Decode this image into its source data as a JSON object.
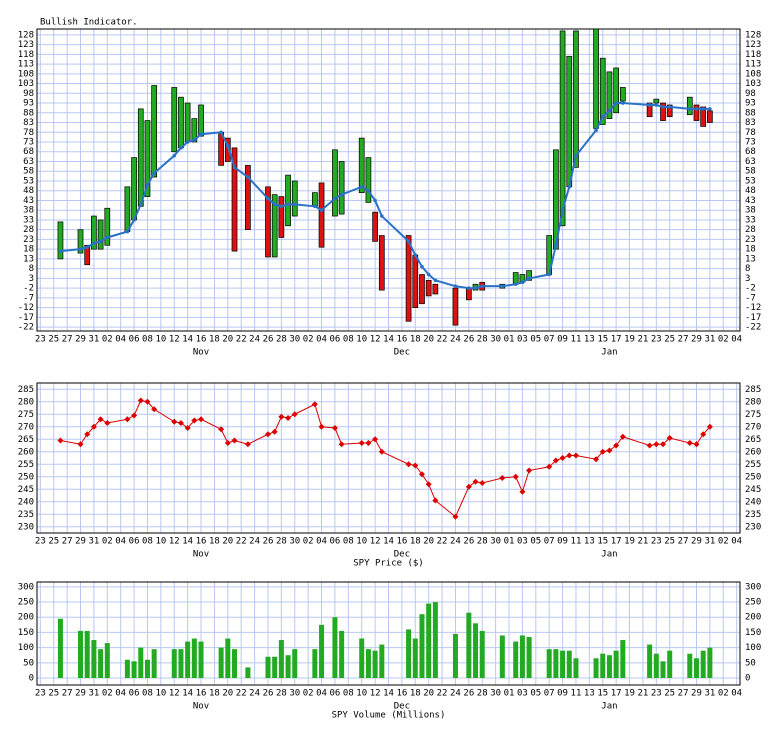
{
  "chart_data": [
    {
      "type": "range_bar",
      "title": "Bullish Indicator.",
      "x": [
        3,
        6,
        7,
        8,
        9,
        10,
        13,
        14,
        15,
        16,
        17,
        20,
        21,
        22,
        23,
        24,
        27,
        28,
        29,
        31,
        34,
        35,
        36,
        37,
        38,
        41,
        42,
        44,
        45,
        48,
        49,
        50,
        51,
        55,
        56,
        57,
        58,
        59,
        62,
        64,
        65,
        66,
        69,
        71,
        72,
        73,
        76,
        77,
        78,
        79,
        80,
        83,
        84,
        85,
        86,
        87,
        91,
        92,
        93,
        94,
        97,
        98,
        99,
        100
      ],
      "open": [
        13,
        16,
        20,
        18,
        18,
        20,
        27,
        33,
        40,
        45,
        55,
        68,
        70,
        73,
        73,
        76,
        78,
        75,
        70,
        61,
        50,
        14,
        45,
        30,
        35,
        40,
        52,
        35,
        36,
        47,
        42,
        37,
        25,
        25,
        15,
        5,
        2,
        0,
        -2,
        -2,
        -3,
        1,
        -2,
        0,
        1,
        2,
        5,
        18,
        30,
        50,
        60,
        80,
        82,
        85,
        88,
        94,
        93,
        93,
        93,
        92,
        87,
        92,
        91,
        89
      ],
      "close": [
        32,
        28,
        10,
        35,
        33,
        39,
        50,
        65,
        90,
        84,
        102,
        101,
        96,
        93,
        85,
        92,
        61,
        63,
        17,
        28,
        14,
        46,
        24,
        56,
        53,
        47,
        19,
        69,
        63,
        75,
        65,
        22,
        -3,
        -19,
        -12,
        -10,
        -6,
        -5,
        -21,
        -8,
        0,
        -3,
        0,
        6,
        5,
        7,
        25,
        69,
        130,
        117,
        130,
        131,
        116,
        109,
        111,
        101,
        86,
        95,
        84,
        86,
        96,
        84,
        81,
        83
      ],
      "up_color": "#22aa22",
      "down_color": "#dd1111",
      "line": {
        "color": "#2a72c8",
        "values": [
          17,
          18,
          19,
          21,
          22,
          24,
          27,
          33,
          41,
          51,
          57,
          66,
          70,
          73,
          74,
          77,
          78,
          71,
          60,
          55,
          44,
          41,
          40,
          41,
          41,
          40,
          38,
          44,
          46,
          50,
          48,
          43,
          35,
          22,
          15,
          9,
          5,
          2,
          -1,
          -2,
          -2,
          -1,
          -1,
          0,
          1,
          3,
          5,
          20,
          38,
          50,
          66,
          79,
          86,
          89,
          93,
          93,
          92,
          92,
          91,
          91,
          90,
          90,
          90,
          90
        ]
      },
      "xlim": [
        -0.5,
        104.5
      ],
      "xticks": [
        {
          "value": 0,
          "label": "23"
        },
        {
          "value": 2,
          "label": "25"
        },
        {
          "value": 4,
          "label": "27"
        },
        {
          "value": 6,
          "label": "29"
        },
        {
          "value": 8,
          "label": "31"
        },
        {
          "value": 10,
          "label": "02"
        },
        {
          "value": 12,
          "label": "04"
        },
        {
          "value": 14,
          "label": "06"
        },
        {
          "value": 16,
          "label": "08"
        },
        {
          "value": 18,
          "label": "10"
        },
        {
          "value": 20,
          "label": "12"
        },
        {
          "value": 22,
          "label": "14"
        },
        {
          "value": 24,
          "label": "16"
        },
        {
          "value": 26,
          "label": "18"
        },
        {
          "value": 28,
          "label": "20"
        },
        {
          "value": 30,
          "label": "22"
        },
        {
          "value": 32,
          "label": "24"
        },
        {
          "value": 34,
          "label": "26"
        },
        {
          "value": 36,
          "label": "28"
        },
        {
          "value": 38,
          "label": "30"
        },
        {
          "value": 40,
          "label": "02"
        },
        {
          "value": 42,
          "label": "04"
        },
        {
          "value": 44,
          "label": "06"
        },
        {
          "value": 46,
          "label": "08"
        },
        {
          "value": 48,
          "label": "10"
        },
        {
          "value": 50,
          "label": "12"
        },
        {
          "value": 52,
          "label": "14"
        },
        {
          "value": 54,
          "label": "16"
        },
        {
          "value": 56,
          "label": "18"
        },
        {
          "value": 58,
          "label": "20"
        },
        {
          "value": 60,
          "label": "22"
        },
        {
          "value": 62,
          "label": "24"
        },
        {
          "value": 64,
          "label": "26"
        },
        {
          "value": 66,
          "label": "28"
        },
        {
          "value": 68,
          "label": "30"
        },
        {
          "value": 70,
          "label": "01"
        },
        {
          "value": 72,
          "label": "03"
        },
        {
          "value": 74,
          "label": "05"
        },
        {
          "value": 76,
          "label": "07"
        },
        {
          "value": 78,
          "label": "09"
        },
        {
          "value": 80,
          "label": "11"
        },
        {
          "value": 82,
          "label": "13"
        },
        {
          "value": 84,
          "label": "15"
        },
        {
          "value": 86,
          "label": "17"
        },
        {
          "value": 88,
          "label": "19"
        },
        {
          "value": 90,
          "label": "21"
        },
        {
          "value": 92,
          "label": "23"
        },
        {
          "value": 94,
          "label": "25"
        },
        {
          "value": 96,
          "label": "27"
        },
        {
          "value": 98,
          "label": "29"
        },
        {
          "value": 100,
          "label": "31"
        },
        {
          "value": 102,
          "label": "02"
        },
        {
          "value": 104,
          "label": "04"
        }
      ],
      "months": [
        {
          "value": 24,
          "label": "Nov"
        },
        {
          "value": 54,
          "label": "Dec"
        },
        {
          "value": 85,
          "label": "Jan"
        }
      ],
      "ylim": [
        -24,
        131
      ],
      "yticks": [
        -22,
        -17,
        -12,
        -7,
        -2,
        3,
        8,
        13,
        18,
        23,
        28,
        33,
        38,
        43,
        48,
        53,
        58,
        63,
        68,
        73,
        78,
        83,
        88,
        93,
        98,
        103,
        108,
        113,
        118,
        123,
        128
      ],
      "grid": true
    },
    {
      "type": "line",
      "x_label": "SPY Price ($)",
      "color": "#dd0000",
      "x": [
        3,
        6,
        7,
        8,
        9,
        10,
        13,
        14,
        15,
        16,
        17,
        20,
        21,
        22,
        23,
        24,
        27,
        28,
        29,
        31,
        34,
        35,
        36,
        37,
        38,
        41,
        42,
        44,
        45,
        48,
        49,
        50,
        51,
        55,
        56,
        57,
        58,
        59,
        62,
        64,
        65,
        66,
        69,
        71,
        72,
        73,
        76,
        77,
        78,
        79,
        80,
        83,
        84,
        85,
        86,
        87,
        91,
        92,
        93,
        94,
        97,
        98,
        99,
        100
      ],
      "values": [
        264.5,
        263,
        267,
        270,
        273,
        271.5,
        273,
        274.5,
        280.5,
        280,
        277,
        272,
        271.5,
        269.5,
        272.5,
        273,
        269,
        263.5,
        264.5,
        263,
        267,
        268,
        274,
        273.5,
        275,
        279,
        270,
        269.5,
        263,
        263.5,
        263.5,
        265,
        260,
        255,
        254.5,
        251,
        247,
        240.5,
        234,
        246,
        248,
        247.5,
        249.5,
        250,
        244,
        252.5,
        254,
        256.5,
        257.5,
        258.5,
        258.5,
        257,
        260,
        260.5,
        262.5,
        266,
        262.5,
        263,
        263,
        265.5,
        263.5,
        263,
        267,
        270
      ],
      "xlim": [
        -0.5,
        104.5
      ],
      "xticks": [
        {
          "value": 0,
          "label": "23"
        },
        {
          "value": 2,
          "label": "25"
        },
        {
          "value": 4,
          "label": "27"
        },
        {
          "value": 6,
          "label": "29"
        },
        {
          "value": 8,
          "label": "31"
        },
        {
          "value": 10,
          "label": "02"
        },
        {
          "value": 12,
          "label": "04"
        },
        {
          "value": 14,
          "label": "06"
        },
        {
          "value": 16,
          "label": "08"
        },
        {
          "value": 18,
          "label": "10"
        },
        {
          "value": 20,
          "label": "12"
        },
        {
          "value": 22,
          "label": "14"
        },
        {
          "value": 24,
          "label": "16"
        },
        {
          "value": 26,
          "label": "18"
        },
        {
          "value": 28,
          "label": "20"
        },
        {
          "value": 30,
          "label": "22"
        },
        {
          "value": 32,
          "label": "24"
        },
        {
          "value": 34,
          "label": "26"
        },
        {
          "value": 36,
          "label": "28"
        },
        {
          "value": 38,
          "label": "30"
        },
        {
          "value": 40,
          "label": "02"
        },
        {
          "value": 42,
          "label": "04"
        },
        {
          "value": 44,
          "label": "06"
        },
        {
          "value": 46,
          "label": "08"
        },
        {
          "value": 48,
          "label": "10"
        },
        {
          "value": 50,
          "label": "12"
        },
        {
          "value": 52,
          "label": "14"
        },
        {
          "value": 54,
          "label": "16"
        },
        {
          "value": 56,
          "label": "18"
        },
        {
          "value": 58,
          "label": "20"
        },
        {
          "value": 60,
          "label": "22"
        },
        {
          "value": 62,
          "label": "24"
        },
        {
          "value": 64,
          "label": "26"
        },
        {
          "value": 66,
          "label": "28"
        },
        {
          "value": 68,
          "label": "30"
        },
        {
          "value": 70,
          "label": "01"
        },
        {
          "value": 72,
          "label": "03"
        },
        {
          "value": 74,
          "label": "05"
        },
        {
          "value": 76,
          "label": "07"
        },
        {
          "value": 78,
          "label": "09"
        },
        {
          "value": 80,
          "label": "11"
        },
        {
          "value": 82,
          "label": "13"
        },
        {
          "value": 84,
          "label": "15"
        },
        {
          "value": 86,
          "label": "17"
        },
        {
          "value": 88,
          "label": "19"
        },
        {
          "value": 90,
          "label": "21"
        },
        {
          "value": 92,
          "label": "23"
        },
        {
          "value": 94,
          "label": "25"
        },
        {
          "value": 96,
          "label": "27"
        },
        {
          "value": 98,
          "label": "29"
        },
        {
          "value": 100,
          "label": "31"
        },
        {
          "value": 102,
          "label": "02"
        },
        {
          "value": 104,
          "label": "04"
        }
      ],
      "months": [
        {
          "value": 24,
          "label": "Nov"
        },
        {
          "value": 54,
          "label": "Dec"
        },
        {
          "value": 85,
          "label": "Jan"
        }
      ],
      "ylim": [
        227.5,
        287.5
      ],
      "yticks": [
        230,
        235,
        240,
        245,
        250,
        255,
        260,
        265,
        270,
        275,
        280,
        285
      ],
      "grid": true
    },
    {
      "type": "bar",
      "x_label": "SPY Volume (Millions)",
      "color": "#22aa22",
      "x": [
        3,
        6,
        7,
        8,
        9,
        10,
        13,
        14,
        15,
        16,
        17,
        20,
        21,
        22,
        23,
        24,
        27,
        28,
        29,
        31,
        34,
        35,
        36,
        37,
        38,
        41,
        42,
        44,
        45,
        48,
        49,
        50,
        51,
        55,
        56,
        57,
        58,
        59,
        62,
        64,
        65,
        66,
        69,
        71,
        72,
        73,
        76,
        77,
        78,
        79,
        80,
        83,
        84,
        85,
        86,
        87,
        91,
        92,
        93,
        94,
        97,
        98,
        99,
        100
      ],
      "values": [
        195,
        155,
        155,
        125,
        95,
        115,
        60,
        55,
        100,
        60,
        95,
        95,
        95,
        120,
        130,
        120,
        100,
        130,
        95,
        35,
        70,
        70,
        125,
        75,
        95,
        95,
        175,
        200,
        155,
        130,
        95,
        90,
        110,
        160,
        130,
        210,
        245,
        250,
        145,
        215,
        180,
        155,
        140,
        120,
        140,
        135,
        95,
        95,
        90,
        90,
        65,
        65,
        80,
        75,
        90,
        125,
        110,
        80,
        55,
        90,
        80,
        65,
        90,
        100
      ],
      "xlim": [
        -0.5,
        104.5
      ],
      "xticks": [
        {
          "value": 0,
          "label": "23"
        },
        {
          "value": 2,
          "label": "25"
        },
        {
          "value": 4,
          "label": "27"
        },
        {
          "value": 6,
          "label": "29"
        },
        {
          "value": 8,
          "label": "31"
        },
        {
          "value": 10,
          "label": "02"
        },
        {
          "value": 12,
          "label": "04"
        },
        {
          "value": 14,
          "label": "06"
        },
        {
          "value": 16,
          "label": "08"
        },
        {
          "value": 18,
          "label": "10"
        },
        {
          "value": 20,
          "label": "12"
        },
        {
          "value": 22,
          "label": "14"
        },
        {
          "value": 24,
          "label": "16"
        },
        {
          "value": 26,
          "label": "18"
        },
        {
          "value": 28,
          "label": "20"
        },
        {
          "value": 30,
          "label": "22"
        },
        {
          "value": 32,
          "label": "24"
        },
        {
          "value": 34,
          "label": "26"
        },
        {
          "value": 36,
          "label": "28"
        },
        {
          "value": 38,
          "label": "30"
        },
        {
          "value": 40,
          "label": "02"
        },
        {
          "value": 42,
          "label": "04"
        },
        {
          "value": 44,
          "label": "06"
        },
        {
          "value": 46,
          "label": "08"
        },
        {
          "value": 48,
          "label": "10"
        },
        {
          "value": 50,
          "label": "12"
        },
        {
          "value": 52,
          "label": "14"
        },
        {
          "value": 54,
          "label": "16"
        },
        {
          "value": 56,
          "label": "18"
        },
        {
          "value": 58,
          "label": "20"
        },
        {
          "value": 60,
          "label": "22"
        },
        {
          "value": 62,
          "label": "24"
        },
        {
          "value": 64,
          "label": "26"
        },
        {
          "value": 66,
          "label": "28"
        },
        {
          "value": 68,
          "label": "30"
        },
        {
          "value": 70,
          "label": "01"
        },
        {
          "value": 72,
          "label": "03"
        },
        {
          "value": 74,
          "label": "05"
        },
        {
          "value": 76,
          "label": "07"
        },
        {
          "value": 78,
          "label": "09"
        },
        {
          "value": 80,
          "label": "11"
        },
        {
          "value": 82,
          "label": "13"
        },
        {
          "value": 84,
          "label": "15"
        },
        {
          "value": 86,
          "label": "17"
        },
        {
          "value": 88,
          "label": "19"
        },
        {
          "value": 90,
          "label": "21"
        },
        {
          "value": 92,
          "label": "23"
        },
        {
          "value": 94,
          "label": "25"
        },
        {
          "value": 96,
          "label": "27"
        },
        {
          "value": 98,
          "label": "29"
        },
        {
          "value": 100,
          "label": "31"
        },
        {
          "value": 102,
          "label": "02"
        },
        {
          "value": 104,
          "label": "04"
        }
      ],
      "months": [
        {
          "value": 24,
          "label": "Nov"
        },
        {
          "value": 54,
          "label": "Dec"
        },
        {
          "value": 85,
          "label": "Jan"
        }
      ],
      "ylim": [
        -23,
        316
      ],
      "yticks": [
        0,
        50,
        100,
        150,
        200,
        250,
        300
      ],
      "grid": true
    }
  ]
}
